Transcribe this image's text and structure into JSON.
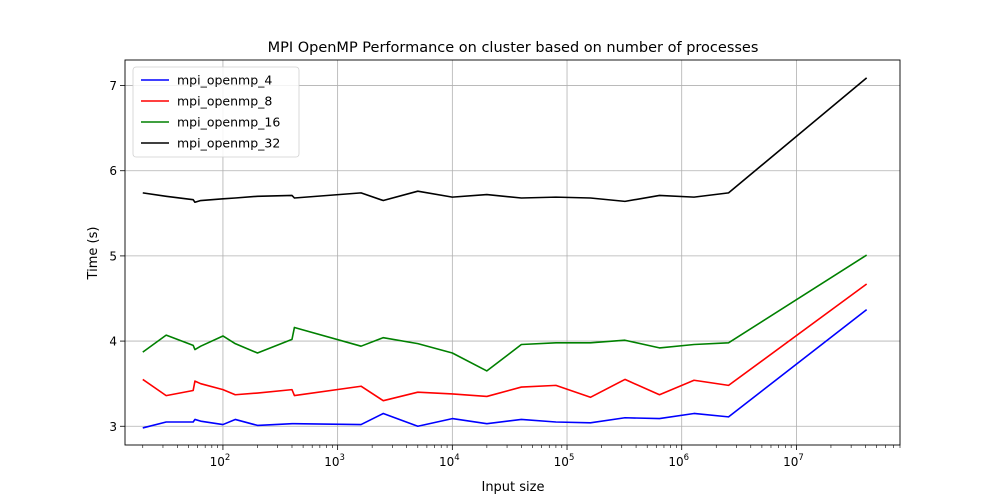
{
  "chart_data": {
    "type": "line",
    "title": "MPI OpenMP Performance on cluster based on number of processes",
    "xlabel": "Input size",
    "ylabel": "Time (s)",
    "xscale": "log",
    "xlim": [
      14,
      80000000
    ],
    "ylim": [
      2.78,
      7.3
    ],
    "grid": true,
    "legend_position": "top-left",
    "x_ticks": [
      {
        "value": 100,
        "base": "10",
        "exp": "2"
      },
      {
        "value": 1000,
        "base": "10",
        "exp": "3"
      },
      {
        "value": 10000,
        "base": "10",
        "exp": "4"
      },
      {
        "value": 100000,
        "base": "10",
        "exp": "5"
      },
      {
        "value": 1000000,
        "base": "10",
        "exp": "6"
      },
      {
        "value": 10000000,
        "base": "10",
        "exp": "7"
      }
    ],
    "y_ticks": [
      3,
      4,
      5,
      6,
      7
    ],
    "x": [
      20,
      32,
      55,
      57,
      64,
      100,
      128,
      200,
      400,
      420,
      1600,
      2500,
      5000,
      10000,
      20000,
      40000,
      80000,
      160000,
      320000,
      640000,
      1280000,
      2560000,
      40960000
    ],
    "series": [
      {
        "name": "mpi_openmp_4",
        "color": "#0000ff",
        "values": [
          2.98,
          3.05,
          3.05,
          3.08,
          3.06,
          3.02,
          3.08,
          3.01,
          3.03,
          3.03,
          3.02,
          3.15,
          3.0,
          3.09,
          3.03,
          3.08,
          3.05,
          3.04,
          3.1,
          3.09,
          3.15,
          3.11,
          4.37
        ]
      },
      {
        "name": "mpi_openmp_8",
        "color": "#ff0000",
        "values": [
          3.55,
          3.36,
          3.42,
          3.53,
          3.5,
          3.43,
          3.37,
          3.39,
          3.43,
          3.36,
          3.47,
          3.3,
          3.4,
          3.38,
          3.35,
          3.46,
          3.48,
          3.34,
          3.55,
          3.37,
          3.54,
          3.48,
          4.67
        ]
      },
      {
        "name": "mpi_openmp_16",
        "color": "#008000",
        "values": [
          3.87,
          4.07,
          3.95,
          3.9,
          3.94,
          4.06,
          3.97,
          3.86,
          4.02,
          4.16,
          3.94,
          4.04,
          3.97,
          3.86,
          3.65,
          3.96,
          3.98,
          3.98,
          4.01,
          3.92,
          3.96,
          3.98,
          5.01
        ]
      },
      {
        "name": "mpi_openmp_32",
        "color": "#000000",
        "values": [
          5.74,
          5.7,
          5.66,
          5.63,
          5.65,
          5.67,
          5.68,
          5.7,
          5.71,
          5.68,
          5.74,
          5.65,
          5.76,
          5.69,
          5.72,
          5.68,
          5.69,
          5.68,
          5.64,
          5.71,
          5.69,
          5.74,
          7.09
        ]
      }
    ]
  }
}
